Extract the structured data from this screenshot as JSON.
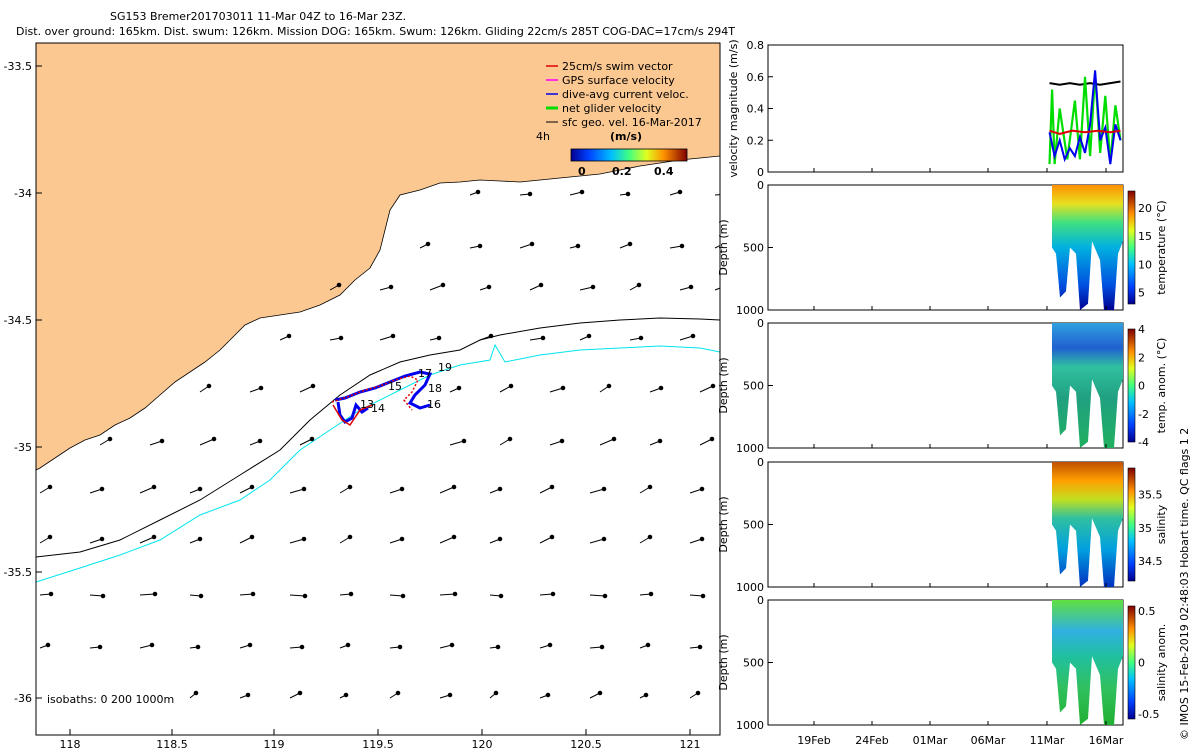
{
  "title_line1": "SG153 Bremer201703011 11-Mar 04Z to 16-Mar 23Z.",
  "title_line2": "Dist. over ground: 165km. Dist. swum: 126km. Mission DOG: 165km. Swum: 126km. Gliding 22cm/s 285T COG-DAC=17cm/s 294T",
  "side_credit": "© IMOS 15-Feb-2019 02:48:03 Hobart time. QC flags 1  2",
  "map": {
    "xticks": [
      "118",
      "118.5",
      "119",
      "119.5",
      "120",
      "120.5",
      "121"
    ],
    "yticks": [
      "-33.5",
      "-34",
      "-34.5",
      "-35",
      "-35.5",
      "-36"
    ],
    "legend": [
      "25cm/s swim vector",
      "GPS surface velocity",
      "dive-avg current veloc.",
      "net glider velocity",
      "sfc geo. vel. 16-Mar-2017"
    ],
    "legend_colors": [
      "#e00000",
      "#ff00ff",
      "#0000ee",
      "#00dd00",
      "#000000"
    ],
    "scale_label": "4h",
    "colorbar_title": "(m/s)",
    "colorbar_ticks": [
      "0",
      "0.2",
      "0.4"
    ],
    "isobaths_label": "isobaths: 0   200  1000m",
    "dive_labels": [
      "13",
      "14",
      "15",
      "16",
      "17",
      "18",
      "19"
    ],
    "land_color": "#fcc892",
    "isobath_200_color": "#000000",
    "isobath_1000_color": "#00e5ee"
  },
  "chart_data": [
    {
      "type": "line",
      "ylabel": "velocity magnitude (m/s)",
      "ylim": [
        0,
        0.8
      ],
      "yticks": [
        "0",
        "0.2",
        "0.4",
        "0.6",
        "0.8"
      ],
      "xticks": [
        "19Feb",
        "24Feb",
        "01Mar",
        "06Mar",
        "11Mar",
        "16Mar"
      ],
      "series": [
        {
          "color": "#000000",
          "x": [
            11.2,
            12,
            12.8,
            13.6,
            14.4,
            15.2,
            16,
            16.8
          ],
          "y": [
            0.56,
            0.55,
            0.56,
            0.55,
            0.56,
            0.55,
            0.56,
            0.57
          ]
        },
        {
          "color": "#00dd00",
          "x": [
            11.2,
            11.4,
            11.6,
            12,
            12.6,
            13.2,
            13.6,
            14,
            14.4,
            14.8,
            15.2,
            15.6,
            16,
            16.4,
            16.8
          ],
          "y": [
            0.05,
            0.52,
            0.05,
            0.4,
            0.08,
            0.45,
            0.08,
            0.6,
            0.1,
            0.62,
            0.12,
            0.48,
            0.06,
            0.42,
            0.2
          ]
        },
        {
          "color": "#0000ee",
          "x": [
            11.2,
            11.6,
            12,
            12.4,
            12.8,
            13.2,
            13.6,
            14,
            14.4,
            14.8,
            15.2,
            15.6,
            16,
            16.4,
            16.8
          ],
          "y": [
            0.25,
            0.1,
            0.2,
            0.08,
            0.15,
            0.1,
            0.22,
            0.12,
            0.3,
            0.64,
            0.2,
            0.28,
            0.05,
            0.3,
            0.2
          ]
        },
        {
          "color": "#e00000",
          "x": [
            11.2,
            12,
            13,
            14,
            15,
            16,
            16.8
          ],
          "y": [
            0.26,
            0.24,
            0.26,
            0.25,
            0.26,
            0.25,
            0.26
          ]
        }
      ]
    },
    {
      "type": "heatmap",
      "ylabel": "Depth (m)",
      "ylim": [
        1000,
        0
      ],
      "yticks": [
        "0",
        "500",
        "1000"
      ],
      "colorbar_label": "temperature (°C)",
      "colorbar_ticks": [
        "20",
        "15",
        "10",
        "5"
      ],
      "xticks": [
        "19Feb",
        "24Feb",
        "01Mar",
        "06Mar",
        "11Mar",
        "16Mar"
      ]
    },
    {
      "type": "heatmap",
      "ylabel": "Depth (m)",
      "ylim": [
        1000,
        0
      ],
      "yticks": [
        "0",
        "500",
        "1000"
      ],
      "colorbar_label": "temp. anom. (°C)",
      "colorbar_ticks": [
        "4",
        "2",
        "0",
        "-2",
        "-4"
      ],
      "xticks": [
        "19Feb",
        "24Feb",
        "01Mar",
        "06Mar",
        "11Mar",
        "16Mar"
      ]
    },
    {
      "type": "heatmap",
      "ylabel": "Depth (m)",
      "ylim": [
        1000,
        0
      ],
      "yticks": [
        "0",
        "500",
        "1000"
      ],
      "colorbar_label": "salinity",
      "colorbar_ticks": [
        "35.5",
        "35",
        "34.5"
      ],
      "xticks": [
        "19Feb",
        "24Feb",
        "01Mar",
        "06Mar",
        "11Mar",
        "16Mar"
      ]
    },
    {
      "type": "heatmap",
      "ylabel": "Depth (m)",
      "ylim": [
        1000,
        0
      ],
      "yticks": [
        "0",
        "500",
        "1000"
      ],
      "colorbar_label": "salinity anom.",
      "colorbar_ticks": [
        "0.5",
        "0",
        "-0.5"
      ],
      "xticks": [
        "19Feb",
        "24Feb",
        "01Mar",
        "06Mar",
        "11Mar",
        "16Mar"
      ]
    }
  ]
}
